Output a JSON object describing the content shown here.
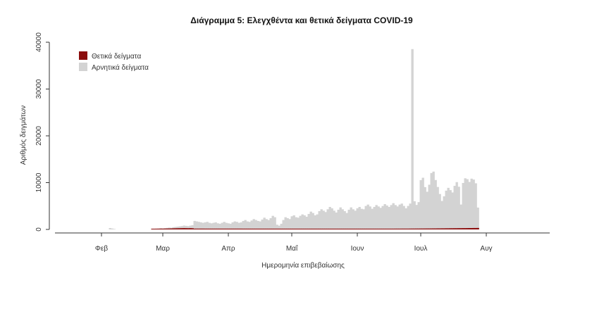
{
  "chart_data": {
    "type": "bar",
    "title": "Διάγραμμα 5: Ελεγχθέντα και θετικά δείγματα COVID-19",
    "xlabel": "Ημερομηνία επιβεβαίωσης",
    "ylabel": "Αριθμός δειγμάτων",
    "ylim": [
      0,
      40000
    ],
    "y_ticks": [
      0,
      10000,
      20000,
      30000,
      40000
    ],
    "x_tick_labels": [
      "Φεβ",
      "Μαρ",
      "Απρ",
      "Μαΐ",
      "Ιουν",
      "Ιουλ",
      "Αυγ"
    ],
    "x_ticks": [
      "2020-02-01",
      "2020-03-01",
      "2020-04-01",
      "2020-05-01",
      "2020-06-01",
      "2020-07-01",
      "2020-08-01"
    ],
    "x_range": [
      "2020-01-10",
      "2020-08-31"
    ],
    "legend_position": "top-left",
    "colors": {
      "positive": "#8b0d0d",
      "negative": "#d3d3d3"
    },
    "series": [
      {
        "name": "Θετικά δείγματα",
        "key": "positive"
      },
      {
        "name": "Αρνητικά δείγματα",
        "key": "negative"
      }
    ],
    "daily_segments": [
      {
        "start": "2020-02-05",
        "negative": [
          300,
          200,
          100,
          0
        ],
        "positive": [
          0,
          0,
          0,
          0
        ]
      },
      {
        "start": "2020-02-25",
        "negative": [
          100,
          150,
          150,
          200,
          250,
          200,
          250,
          300,
          350,
          300,
          400,
          450,
          500,
          550,
          600,
          700,
          650,
          600,
          700,
          800
        ],
        "positive": [
          5,
          5,
          10,
          10,
          20,
          20,
          30,
          40,
          50,
          60,
          80,
          90,
          100,
          110,
          120,
          130,
          120,
          110,
          120,
          100
        ]
      },
      {
        "start": "2020-03-16",
        "negative": [
          1800,
          1700,
          1600,
          1500,
          1400,
          1500,
          1600,
          1400,
          1300,
          1400,
          1500,
          1300,
          1200,
          1400,
          1600,
          1400,
          1300,
          1200,
          1500,
          1700,
          1600,
          1400,
          1500,
          1800,
          2000,
          1700,
          1600,
          1900,
          2200,
          2000,
          1800,
          1700,
          2100,
          2500,
          2200,
          2000,
          2400,
          2900,
          2600,
          1000,
          800,
          1200,
          2000,
          2600,
          2400,
          2200,
          2800,
          3000,
          2600,
          2500,
          2900,
          3200,
          3000,
          2700,
          3300,
          3800,
          3500,
          3000,
          3200,
          3900,
          4300,
          4000,
          3700,
          4300,
          4800,
          4500,
          4000,
          3600,
          4200,
          4700,
          4300,
          3900,
          3500,
          4200,
          4700,
          4300,
          4000,
          4500,
          4800,
          4400,
          4300,
          5000,
          5300,
          4900,
          4400,
          4800,
          5200,
          4900,
          4600,
          5000,
          5400,
          5100,
          4800,
          5200,
          5600,
          5200,
          4900,
          5300,
          5500,
          5000,
          4500,
          5000,
          5500,
          38500,
          6000,
          5200,
          5800,
          10500,
          11000,
          9000,
          8000,
          9500,
          12000,
          12300,
          10500,
          9000,
          7500,
          6000,
          7000,
          8200,
          8800,
          8300,
          7800,
          9200,
          10000,
          9000,
          5200,
          9800,
          10800,
          10600,
          10000,
          10700,
          10500,
          9700,
          4500
        ],
        "positive": [
          20,
          20,
          20,
          20,
          20,
          15,
          15,
          15,
          15,
          15,
          15,
          15,
          15,
          15,
          15,
          15,
          15,
          15,
          15,
          15,
          15,
          15,
          15,
          10,
          10,
          10,
          10,
          10,
          10,
          10,
          10,
          10,
          10,
          10,
          10,
          10,
          10,
          10,
          10,
          10,
          10,
          10,
          10,
          10,
          10,
          10,
          10,
          10,
          10,
          10,
          10,
          10,
          10,
          10,
          10,
          10,
          10,
          10,
          10,
          10,
          10,
          10,
          10,
          10,
          10,
          10,
          10,
          10,
          10,
          10,
          10,
          10,
          10,
          10,
          10,
          10,
          10,
          10,
          10,
          10,
          10,
          10,
          10,
          10,
          10,
          10,
          10,
          10,
          10,
          10,
          10,
          10,
          10,
          10,
          10,
          15,
          15,
          15,
          20,
          20,
          20,
          20,
          25,
          30,
          30,
          35,
          35,
          40,
          40,
          45,
          50,
          50,
          55,
          60,
          60,
          70,
          70,
          80,
          80,
          90,
          90,
          100,
          100,
          110,
          110,
          120,
          120,
          130,
          130,
          140,
          150,
          150,
          160,
          160,
          170
        ]
      }
    ]
  }
}
